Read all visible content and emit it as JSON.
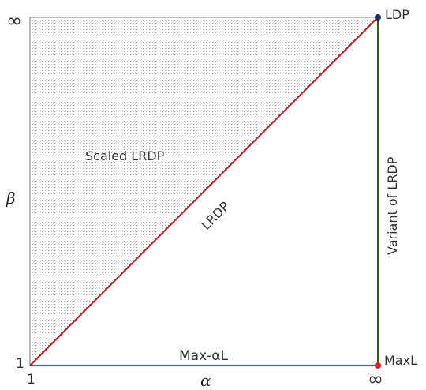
{
  "diagram": {
    "axes": {
      "x_symbol": "α",
      "y_symbol": "β",
      "x_min_label": "1",
      "x_max_label": "∞",
      "y_min_label": "1",
      "y_max_label": "∞"
    },
    "regions": {
      "upper_triangle_label": "Scaled LRDP"
    },
    "edges": {
      "diagonal_label": "LRDP",
      "right_edge_label": "Variant of LRDP",
      "bottom_edge_label": "Max-αL"
    },
    "points": {
      "top_right_label": "LDP",
      "bottom_right_label": "MaxL"
    },
    "colors": {
      "diagonal": "#c0141c",
      "right_edge": "#3a5a1e",
      "bottom_edge": "#2f74b5",
      "top_right_point": "#1b2a5c",
      "bottom_right_point": "#e01e1e",
      "shading_dots": "#c9a08a",
      "frame": "#8a8a8a"
    }
  }
}
